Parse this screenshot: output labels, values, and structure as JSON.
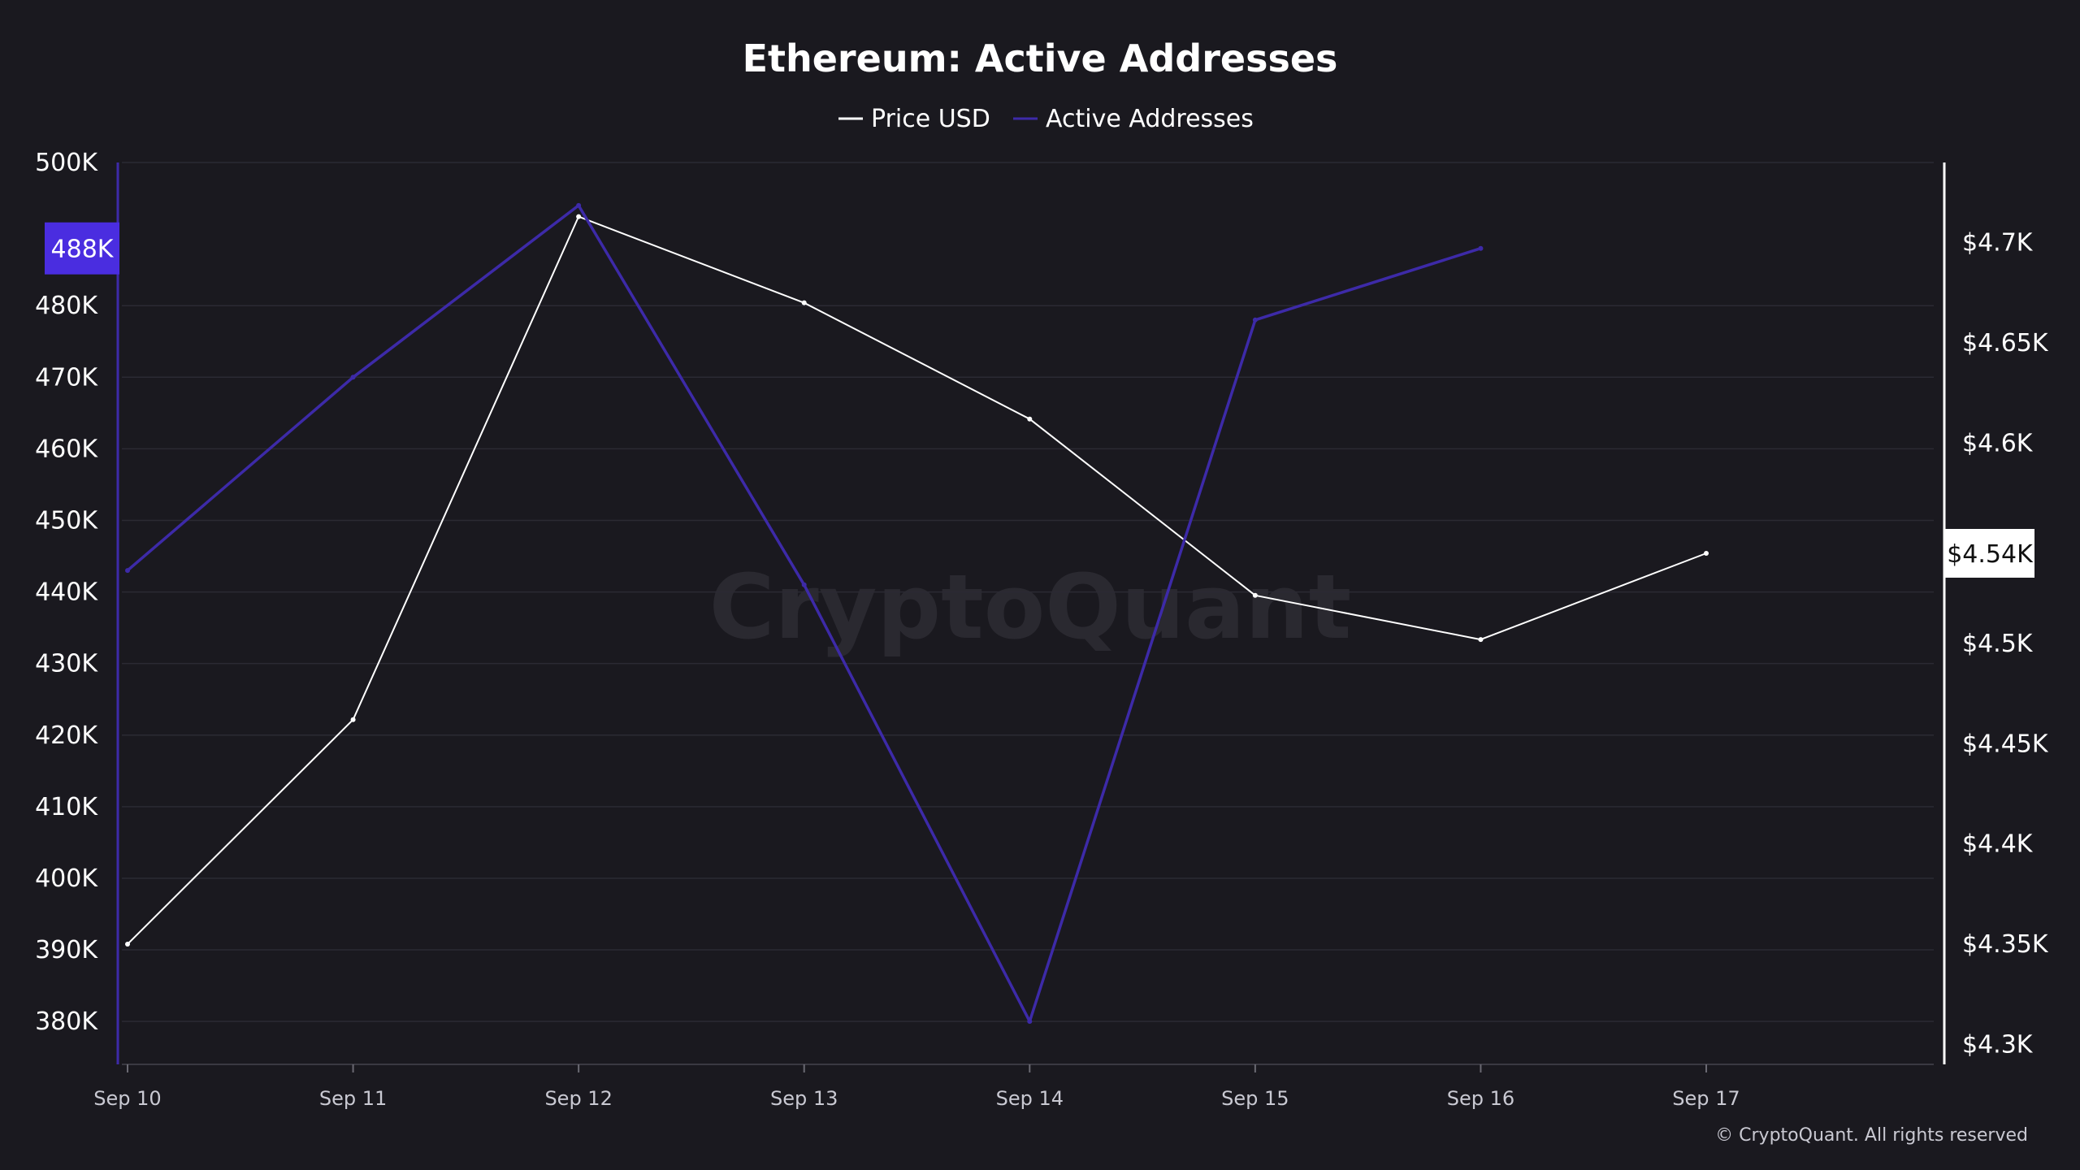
{
  "chart_data": {
    "type": "line",
    "title": "Ethereum: Active Addresses",
    "categories": [
      "Sep 10",
      "Sep 11",
      "Sep 12",
      "Sep 13",
      "Sep 14",
      "Sep 15",
      "Sep 16",
      "Sep 17"
    ],
    "series": [
      {
        "name": "Price USD",
        "axis": "right",
        "color": "#ffffff",
        "values": [
          4350,
          4462,
          4713,
          4670,
          4612,
          4524,
          4502,
          4545
        ]
      },
      {
        "name": "Active Addresses",
        "axis": "left",
        "color": "#3d2aa8",
        "values": [
          443000,
          470000,
          494000,
          441000,
          380000,
          478000,
          488000,
          null
        ]
      }
    ],
    "left_axis": {
      "ylim": [
        374000,
        500000
      ],
      "ticks": [
        500000,
        480000,
        470000,
        460000,
        450000,
        440000,
        430000,
        420000,
        410000,
        400000,
        390000,
        380000
      ],
      "tick_labels": [
        "500K",
        "480K",
        "470K",
        "460K",
        "450K",
        "440K",
        "430K",
        "420K",
        "410K",
        "400K",
        "390K",
        "380K"
      ],
      "color": "#3d2aa8"
    },
    "right_axis": {
      "ylim": [
        4290,
        4740
      ],
      "ticks": [
        4700,
        4650,
        4600,
        4500,
        4450,
        4400,
        4350,
        4300
      ],
      "tick_labels": [
        "$4.7K",
        "$4.65K",
        "$4.6K",
        "$4.5K",
        "$4.45K",
        "$4.4K",
        "$4.35K",
        "$4.3K"
      ],
      "color": "#ffffff"
    },
    "left_badge": {
      "label": "488K",
      "value": 488000,
      "color": "#4a2de0"
    },
    "right_badge": {
      "label": "$4.54K",
      "value": 4545
    },
    "legend_position": "top-center",
    "grid": true
  },
  "watermark": "CryptoQuant",
  "copyright": "© CryptoQuant. All rights reserved"
}
